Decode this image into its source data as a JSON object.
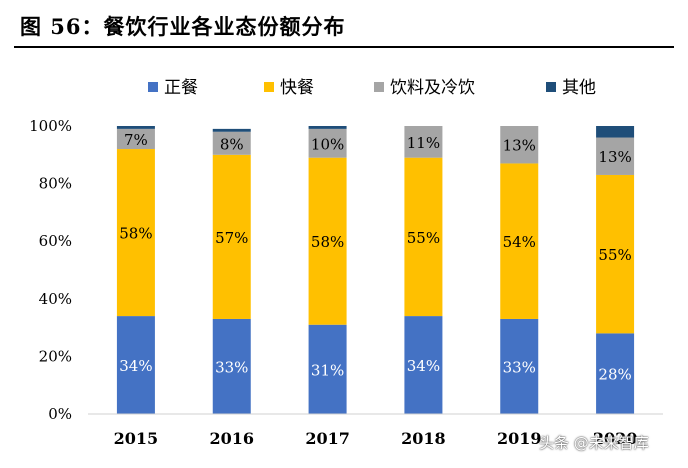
{
  "title": "图 56：餐饮行业各业态份额分布",
  "watermark": "头条 @未来智库",
  "chart_data": {
    "type": "bar",
    "stacked": true,
    "categories": [
      "2015",
      "2016",
      "2017",
      "2018",
      "2019",
      "2020"
    ],
    "series": [
      {
        "name": "正餐",
        "color": "#4472C4",
        "values": [
          34,
          33,
          31,
          34,
          33,
          28
        ],
        "labels": [
          "34%",
          "33%",
          "31%",
          "34%",
          "33%",
          "28%"
        ],
        "label_color": "#ffffff"
      },
      {
        "name": "快餐",
        "color": "#FFC000",
        "values": [
          58,
          57,
          58,
          55,
          54,
          55
        ],
        "labels": [
          "58%",
          "57%",
          "58%",
          "55%",
          "54%",
          "55%"
        ],
        "label_color": "#000000"
      },
      {
        "name": "饮料及冷饮",
        "color": "#A5A5A5",
        "values": [
          7,
          8,
          10,
          11,
          13,
          13
        ],
        "labels": [
          "7%",
          "8%",
          "10%",
          "11%",
          "13%",
          "13%"
        ],
        "label_color": "#000000"
      },
      {
        "name": "其他",
        "color": "#1F4E79",
        "values": [
          1,
          1,
          1,
          1,
          1,
          4
        ],
        "labels": [
          "",
          "",
          "",
          "",
          "",
          ""
        ],
        "label_color": "#ffffff"
      }
    ],
    "ylim": [
      0,
      100
    ],
    "yticks": [
      0,
      20,
      40,
      60,
      80,
      100
    ],
    "ytick_labels": [
      "0%",
      "20%",
      "40%",
      "60%",
      "80%",
      "100%"
    ],
    "legend_position": "top",
    "grid": false
  }
}
